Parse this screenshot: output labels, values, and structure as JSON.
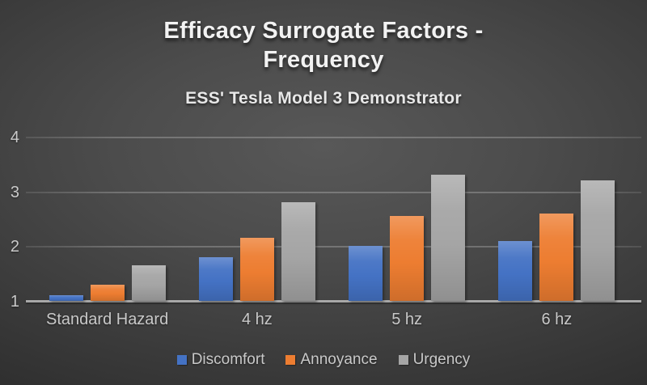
{
  "slide": {
    "title": "Efficacy Surrogate Factors - Frequency",
    "title_lines": [
      "Efficacy Surrogate Factors -",
      "Frequency"
    ],
    "subtitle": "ESS' Tesla Model 3 Demonstrator"
  },
  "chart_data": {
    "type": "bar",
    "title": "Efficacy Surrogate Factors - Frequency",
    "subtitle": "ESS' Tesla Model 3 Demonstrator",
    "categories": [
      "Standard Hazard",
      "4 hz",
      "5 hz",
      "6 hz"
    ],
    "series": [
      {
        "name": "Discomfort",
        "color": "#4472C4",
        "values": [
          1.1,
          1.8,
          2.0,
          2.1
        ]
      },
      {
        "name": "Annoyance",
        "color": "#ED7D31",
        "values": [
          1.3,
          2.15,
          2.55,
          2.6
        ]
      },
      {
        "name": "Urgency",
        "color": "#A5A5A5",
        "values": [
          1.65,
          2.8,
          3.3,
          3.2
        ]
      }
    ],
    "y_axis": {
      "min": 1,
      "max": 4,
      "ticks": [
        4,
        3,
        2,
        1
      ]
    },
    "grid": true,
    "legend_position": "bottom",
    "background_style": "dark radial gradient slide"
  },
  "colors": {
    "background_center": "#575757",
    "background_edge": "#222222",
    "title_text": "#f2f2f2",
    "axis_text": "#c9c9c9",
    "gridline": "rgba(255,255,255,0.22)",
    "baseline": "#a8a8a8"
  }
}
